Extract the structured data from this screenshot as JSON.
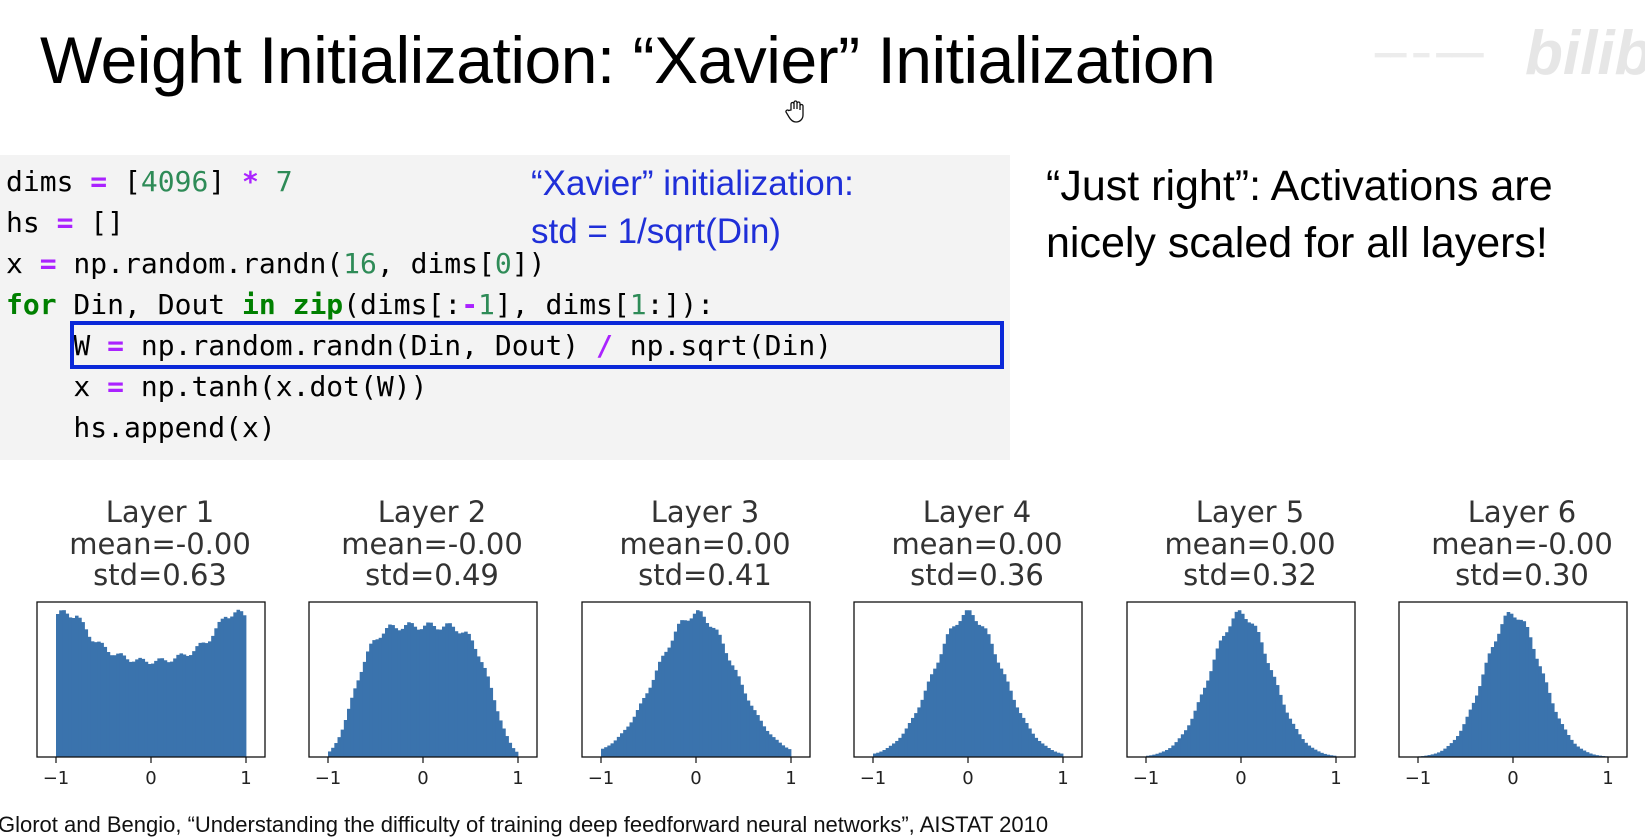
{
  "title": "Weight Initialization: “Xavier” Initialization",
  "watermark": {
    "text": "bilibili"
  },
  "code": {
    "lines": [
      [
        {
          "t": "dims "
        },
        {
          "t": "=",
          "c": "op"
        },
        {
          "t": " ["
        },
        {
          "t": "4096",
          "c": "num"
        },
        {
          "t": "] "
        },
        {
          "t": "*",
          "c": "op"
        },
        {
          "t": " "
        },
        {
          "t": "7",
          "c": "num"
        }
      ],
      [
        {
          "t": "hs "
        },
        {
          "t": "=",
          "c": "op"
        },
        {
          "t": " []"
        }
      ],
      [
        {
          "t": "x "
        },
        {
          "t": "=",
          "c": "op"
        },
        {
          "t": " np.random.randn("
        },
        {
          "t": "16",
          "c": "num"
        },
        {
          "t": ", dims["
        },
        {
          "t": "0",
          "c": "num"
        },
        {
          "t": "])"
        }
      ],
      [
        {
          "t": "for",
          "c": "kw"
        },
        {
          "t": " Din, Dout "
        },
        {
          "t": "in",
          "c": "kw"
        },
        {
          "t": " "
        },
        {
          "t": "zip",
          "c": "kw"
        },
        {
          "t": "(dims[:"
        },
        {
          "t": "-",
          "c": "op"
        },
        {
          "t": "1",
          "c": "num"
        },
        {
          "t": "], dims["
        },
        {
          "t": "1",
          "c": "num"
        },
        {
          "t": ":]):"
        }
      ],
      [
        {
          "t": "    W "
        },
        {
          "t": "=",
          "c": "op"
        },
        {
          "t": " np.random.randn(Din, Dout) "
        },
        {
          "t": "/",
          "c": "op"
        },
        {
          "t": " np.sqrt(Din)"
        }
      ],
      [
        {
          "t": "    x "
        },
        {
          "t": "=",
          "c": "op"
        },
        {
          "t": " np.tanh(x.dot(W))"
        }
      ],
      [
        {
          "t": "    hs.append(x)"
        }
      ]
    ]
  },
  "xavier_note": {
    "line1": "“Xavier” initialization:",
    "line2": "std = 1/sqrt(Din)"
  },
  "just_right": {
    "line1": "“Just right”: Activations are",
    "line2": "nicely scaled for all layers!"
  },
  "bar_color": "#3a73ad",
  "histograms": [
    {
      "layer": "Layer 1",
      "mean": "mean=-0.00",
      "std": "std=0.63",
      "std_value": 0.63
    },
    {
      "layer": "Layer 2",
      "mean": "mean=-0.00",
      "std": "std=0.49",
      "std_value": 0.49
    },
    {
      "layer": "Layer 3",
      "mean": "mean=0.00",
      "std": "std=0.41",
      "std_value": 0.41
    },
    {
      "layer": "Layer 4",
      "mean": "mean=0.00",
      "std": "std=0.36",
      "std_value": 0.36
    },
    {
      "layer": "Layer 5",
      "mean": "mean=0.00",
      "std": "std=0.32",
      "std_value": 0.32
    },
    {
      "layer": "Layer 6",
      "mean": "mean=-0.00",
      "std": "std=0.30",
      "std_value": 0.3
    }
  ],
  "x_ticks": [
    "−1",
    "0",
    "1"
  ],
  "citation": "Glorot and Bengio, “Understanding the difficulty of training deep feedforward neural networks”, AISTAT 2010"
}
